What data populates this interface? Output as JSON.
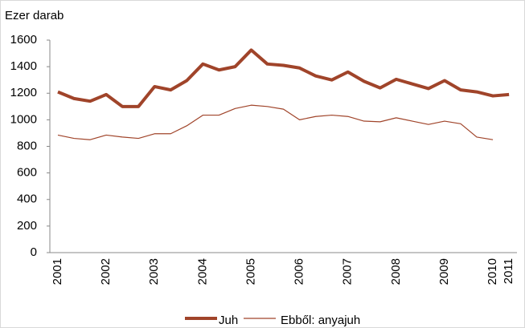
{
  "chart_data": {
    "type": "line",
    "y_label": "Ezer darab",
    "categories": [
      "2001",
      null,
      null,
      "2002",
      null,
      null,
      "2003",
      null,
      null,
      "2004",
      null,
      null,
      "2005",
      null,
      null,
      "2006",
      null,
      null,
      "2007",
      null,
      null,
      "2008",
      null,
      null,
      "2009",
      null,
      null,
      "2010",
      "2011"
    ],
    "series": [
      {
        "name": "Juh",
        "color": "#a0442a",
        "width": 4,
        "values": [
          1210,
          1160,
          1140,
          1190,
          1100,
          1100,
          1250,
          1225,
          1295,
          1420,
          1375,
          1400,
          1525,
          1420,
          1410,
          1390,
          1330,
          1300,
          1360,
          1290,
          1240,
          1305,
          1270,
          1235,
          1295,
          1225,
          1210,
          1180,
          1190
        ]
      },
      {
        "name": "Ebből: anyajuh",
        "color": "#a0442a",
        "width": 1.2,
        "values": [
          885,
          860,
          850,
          885,
          870,
          860,
          895,
          895,
          955,
          1035,
          1035,
          1085,
          1110,
          1100,
          1080,
          1000,
          1025,
          1035,
          1025,
          990,
          985,
          1015,
          990,
          965,
          990,
          970,
          870,
          850,
          null
        ]
      }
    ],
    "ylim": [
      0,
      1600
    ],
    "yticks": [
      0,
      200,
      400,
      600,
      800,
      1000,
      1200,
      1400,
      1600
    ]
  }
}
